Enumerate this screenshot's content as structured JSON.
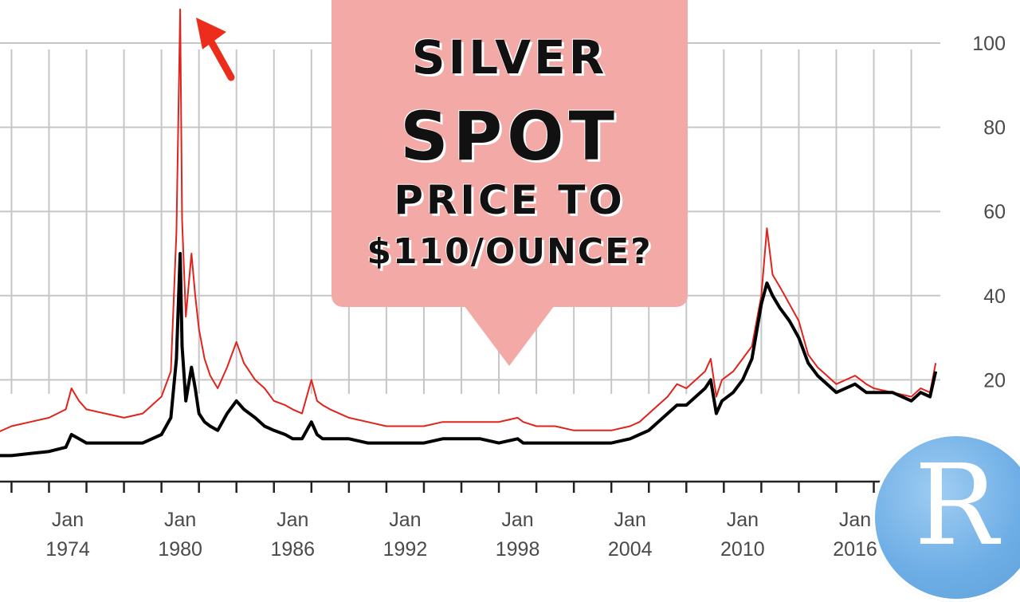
{
  "headline": {
    "line1": "SILVER",
    "line2": "SPOT",
    "line3": "PRICE TO",
    "line4": "$110/OUNCE?"
  },
  "logo": {
    "letter": "R",
    "icon": "r-logo-icon",
    "color": "#6eaee6"
  },
  "colors": {
    "inflation_adjusted": "#e0231c",
    "nominal": "#000000",
    "callout": "#f3aaa7",
    "arrow": "#ec2d1b"
  },
  "chart_data": {
    "type": "line",
    "title": "",
    "xlabel": "",
    "ylabel": "",
    "ylim": [
      0,
      110
    ],
    "xlim": [
      1968.7,
      2020.5
    ],
    "yticks": [
      20,
      40,
      60,
      80,
      100
    ],
    "ytick_labels": [
      "20",
      "40",
      "60",
      "80",
      "100"
    ],
    "xticks": [
      1974,
      1980,
      1986,
      1992,
      1998,
      2004,
      2010,
      2016
    ],
    "xtick_labels": [
      [
        "Jan",
        "1974"
      ],
      [
        "Jan",
        "1980"
      ],
      [
        "Jan",
        "1986"
      ],
      [
        "Jan",
        "1992"
      ],
      [
        "Jan",
        "1998"
      ],
      [
        "Jan",
        "2004"
      ],
      [
        "Jan",
        "2010"
      ],
      [
        "Jan",
        "2016"
      ]
    ],
    "grid": true,
    "annotations": [
      {
        "type": "arrow",
        "target_x": 1980.0,
        "target_y": 108
      }
    ],
    "series": [
      {
        "color": "#e0231c",
        "x": [
          1968.7,
          1970,
          1971,
          1972,
          1973,
          1973.9,
          1974.2,
          1974.6,
          1975,
          1976,
          1977,
          1978,
          1979,
          1979.5,
          1979.8,
          1980.0,
          1980.1,
          1980.3,
          1980.6,
          1980.8,
          1981,
          1981.3,
          1981.6,
          1982.0,
          1982.5,
          1983.0,
          1983.4,
          1984,
          1984.5,
          1985,
          1985.6,
          1986,
          1986.5,
          1987.0,
          1987.3,
          1987.6,
          1988,
          1989,
          1990,
          1991,
          1992,
          1993,
          1994,
          1995,
          1996,
          1997,
          1998.0,
          1998.3,
          1999,
          2000,
          2001,
          2002,
          2003,
          2004,
          2004.5,
          2005,
          2006,
          2006.5,
          2007,
          2008.0,
          2008.3,
          2008.6,
          2008.9,
          2009.5,
          2010,
          2010.5,
          2011.0,
          2011.3,
          2011.6,
          2012,
          2012.5,
          2013,
          2013.5,
          2014,
          2015,
          2016,
          2016.6,
          2017,
          2018,
          2019,
          2019.5,
          2020.0,
          2020.3
        ],
        "y": [
          8,
          7,
          9,
          10,
          11,
          13,
          18,
          15,
          13,
          12,
          11,
          12,
          16,
          22,
          55,
          108,
          58,
          35,
          50,
          40,
          32,
          25,
          21,
          18,
          23,
          29,
          24,
          20,
          18,
          15,
          14,
          13,
          12,
          20,
          15,
          14,
          13,
          11,
          10,
          9,
          9,
          9,
          10,
          10,
          10,
          10,
          11,
          10,
          9,
          9,
          8,
          8,
          8,
          9,
          10,
          12,
          16,
          19,
          18,
          22,
          25,
          16,
          20,
          22,
          25,
          28,
          40,
          56,
          45,
          42,
          38,
          34,
          26,
          23,
          19,
          21,
          19,
          18,
          17,
          16,
          18,
          17,
          24
        ]
      },
      {
        "color": "#000000",
        "x": [
          1968.7,
          1970,
          1971,
          1972,
          1973,
          1973.9,
          1974.2,
          1974.6,
          1975,
          1976,
          1977,
          1978,
          1979,
          1979.5,
          1979.8,
          1980.0,
          1980.1,
          1980.3,
          1980.6,
          1980.8,
          1981,
          1981.3,
          1981.6,
          1982.0,
          1982.5,
          1983.0,
          1983.4,
          1984,
          1984.5,
          1985,
          1985.6,
          1986,
          1986.5,
          1987.0,
          1987.3,
          1987.6,
          1988,
          1989,
          1990,
          1991,
          1992,
          1993,
          1994,
          1995,
          1996,
          1997,
          1998.0,
          1998.3,
          1999,
          2000,
          2001,
          2002,
          2003,
          2004,
          2004.5,
          2005,
          2006,
          2006.5,
          2007,
          2008.0,
          2008.3,
          2008.6,
          2008.9,
          2009.5,
          2010,
          2010.5,
          2011.0,
          2011.3,
          2011.6,
          2012,
          2012.5,
          2013,
          2013.5,
          2014,
          2015,
          2016,
          2016.6,
          2017,
          2018,
          2019,
          2019.5,
          2020.0,
          2020.3
        ],
        "y": [
          2,
          2,
          2,
          2.5,
          3,
          4,
          7,
          6,
          5,
          5,
          5,
          5,
          7,
          11,
          25,
          50,
          28,
          15,
          23,
          18,
          12,
          10,
          9,
          8,
          12,
          15,
          13,
          11,
          9,
          8,
          7,
          6,
          6,
          10,
          7,
          6,
          6,
          6,
          5,
          5,
          5,
          5,
          6,
          6,
          6,
          5,
          6,
          5,
          5,
          5,
          5,
          5,
          5,
          6,
          7,
          8,
          12,
          14,
          14,
          18,
          20,
          12,
          15,
          17,
          20,
          25,
          38,
          43,
          40,
          37,
          34,
          30,
          24,
          21,
          17,
          19,
          17,
          17,
          17,
          15,
          17,
          16,
          22
        ]
      }
    ]
  }
}
